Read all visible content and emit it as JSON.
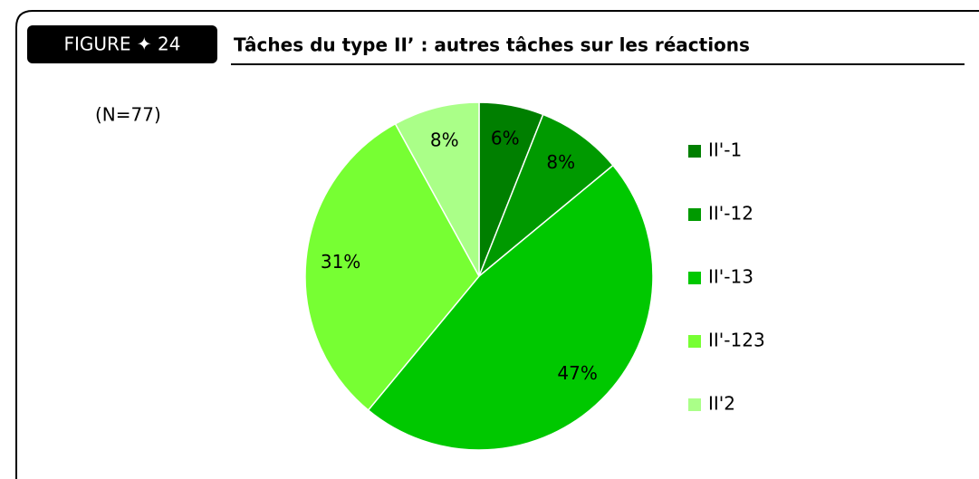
{
  "figure_label": "FIGURE ✦ 24",
  "chart_data": {
    "type": "pie",
    "title": "Tâches du type II’ : autres tâches sur les réactions",
    "annotation": "(N=77)",
    "categories": [
      "II'-1",
      "II'-12",
      "II'-13",
      "II'-123",
      "II'2"
    ],
    "values": [
      6,
      8,
      47,
      31,
      8
    ],
    "value_labels": [
      "6%",
      "8%",
      "47%",
      "31%",
      "8%"
    ],
    "colors": [
      "#007f00",
      "#009a00",
      "#00c800",
      "#77ff33",
      "#aaff88"
    ],
    "legend": "right"
  }
}
